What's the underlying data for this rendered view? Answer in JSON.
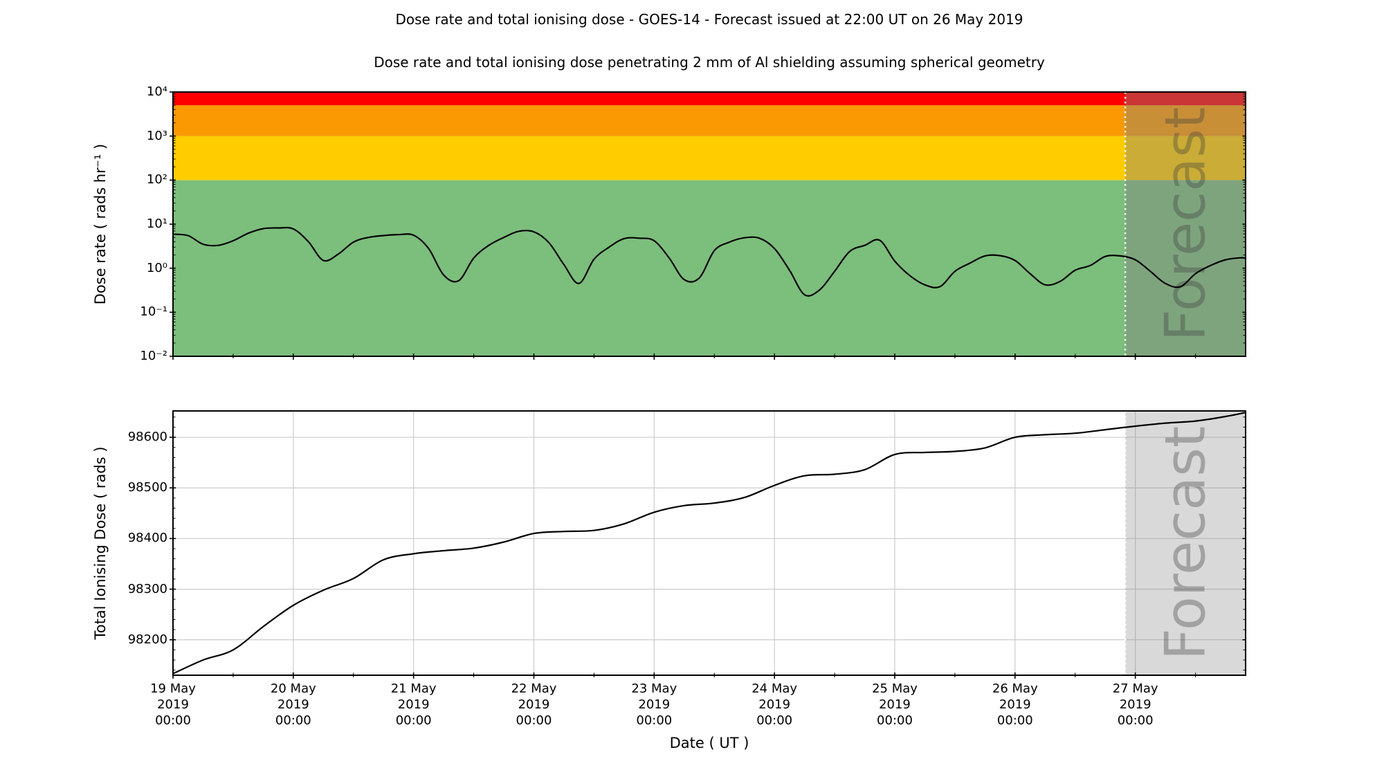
{
  "figure": {
    "title": "Dose rate and total ionising dose - GOES-14 - Forecast issued at 22:00 UT on 26 May 2019",
    "subtitle": "Dose rate and total ionising dose penetrating 2 mm of Al shielding assuming spherical geometry",
    "xlabel": "Date ( UT )",
    "background": "#ffffff"
  },
  "forecast": {
    "label": "Forecast",
    "start_hour": 190,
    "issued": "22:00 UT on 26 May 2019"
  },
  "x_axis": {
    "start": "19 May 2019 00:00",
    "end": "27 May 2019 22:00",
    "total_hours": 214,
    "major_tick_hours": 24,
    "minor_tick_hours": 12,
    "tick_labels": [
      {
        "day": "19 May",
        "year": "2019",
        "time": "00:00"
      },
      {
        "day": "20 May",
        "year": "2019",
        "time": "00:00"
      },
      {
        "day": "21 May",
        "year": "2019",
        "time": "00:00"
      },
      {
        "day": "22 May",
        "year": "2019",
        "time": "00:00"
      },
      {
        "day": "23 May",
        "year": "2019",
        "time": "00:00"
      },
      {
        "day": "24 May",
        "year": "2019",
        "time": "00:00"
      },
      {
        "day": "25 May",
        "year": "2019",
        "time": "00:00"
      },
      {
        "day": "26 May",
        "year": "2019",
        "time": "00:00"
      },
      {
        "day": "27 May",
        "year": "2019",
        "time": "00:00"
      }
    ]
  },
  "colors": {
    "curve": "#000000",
    "grid": "#cccccc",
    "spine": "#000000",
    "band_green": "#7CBE7C",
    "band_yellow": "#FFCC00",
    "band_orange": "#FB9902",
    "band_red": "#FF0000",
    "forecast_overlay_top": "rgba(128,128,128,0.42)",
    "forecast_fill_bottom": "rgba(128,128,128,0.30)",
    "watermark_text": "rgba(60,60,60,0.35)",
    "divider_line": "#ffffff"
  },
  "chart_data": [
    {
      "name": "dose_rate",
      "type": "line",
      "ylabel": "Dose rate ( rads hr⁻¹ )",
      "unit": "rads hr⁻¹",
      "yscale": "log",
      "ylim": [
        0.01,
        10000
      ],
      "yticks": [
        {
          "value": 10000,
          "label": "10⁴"
        },
        {
          "value": 1000,
          "label": "10³"
        },
        {
          "value": 100,
          "label": "10²"
        },
        {
          "value": 10,
          "label": "10¹"
        },
        {
          "value": 1,
          "label": "10⁰"
        },
        {
          "value": 0.1,
          "label": "10⁻¹"
        },
        {
          "value": 0.01,
          "label": "10⁻²"
        }
      ],
      "bands": [
        {
          "name": "green",
          "from": 0.01,
          "to": 100,
          "color": "#7CBE7C"
        },
        {
          "name": "yellow",
          "from": 100,
          "to": 1000,
          "color": "#FFCC00"
        },
        {
          "name": "orange",
          "from": 1000,
          "to": 5000,
          "color": "#FB9902"
        },
        {
          "name": "red",
          "from": 5000,
          "to": 10000,
          "color": "#FF0000"
        }
      ],
      "step_hours": 3,
      "values": [
        5.9,
        5.5,
        3.5,
        3.3,
        4.2,
        6.2,
        7.9,
        8.2,
        7.8,
        4.0,
        1.5,
        2.1,
        3.9,
        5.0,
        5.5,
        5.8,
        5.6,
        2.8,
        0.7,
        0.52,
        1.7,
        3.3,
        5.0,
        6.9,
        6.7,
        3.8,
        1.2,
        0.45,
        1.6,
        3.0,
        4.7,
        4.8,
        4.2,
        1.7,
        0.55,
        0.6,
        2.5,
        3.9,
        4.9,
        4.8,
        2.8,
        0.9,
        0.25,
        0.32,
        0.85,
        2.4,
        3.3,
        4.3,
        1.45,
        0.68,
        0.42,
        0.38,
        0.85,
        1.3,
        1.9,
        1.93,
        1.5,
        0.75,
        0.42,
        0.5,
        0.9,
        1.15,
        1.85,
        1.9,
        1.55,
        0.85,
        0.45,
        0.38,
        0.75,
        1.15,
        1.55,
        1.72
      ],
      "end_value": 1.68,
      "grid": false
    },
    {
      "name": "total_ionising_dose",
      "type": "line",
      "ylabel": "Total Ionising Dose ( rads )",
      "unit": "rads",
      "yscale": "linear",
      "ylim": [
        98130,
        98652
      ],
      "yticks": [
        {
          "value": 98600,
          "label": "98600"
        },
        {
          "value": 98500,
          "label": "98500"
        },
        {
          "value": 98400,
          "label": "98400"
        },
        {
          "value": 98300,
          "label": "98300"
        },
        {
          "value": 98200,
          "label": "98200"
        }
      ],
      "minor_tick_step": 20,
      "step_hours": 6,
      "values": [
        98133,
        98160,
        98180,
        98226,
        98268,
        98298,
        98321,
        98358,
        98370,
        98376,
        98381,
        98393,
        98410,
        98414,
        98416,
        98429,
        98452,
        98465,
        98470,
        98481,
        98505,
        98524,
        98527,
        98536,
        98566,
        98570,
        98572,
        98579,
        98600,
        98605,
        98608,
        98615,
        98622,
        98628,
        98632,
        98641
      ],
      "end_value": 98649,
      "grid": true
    }
  ]
}
